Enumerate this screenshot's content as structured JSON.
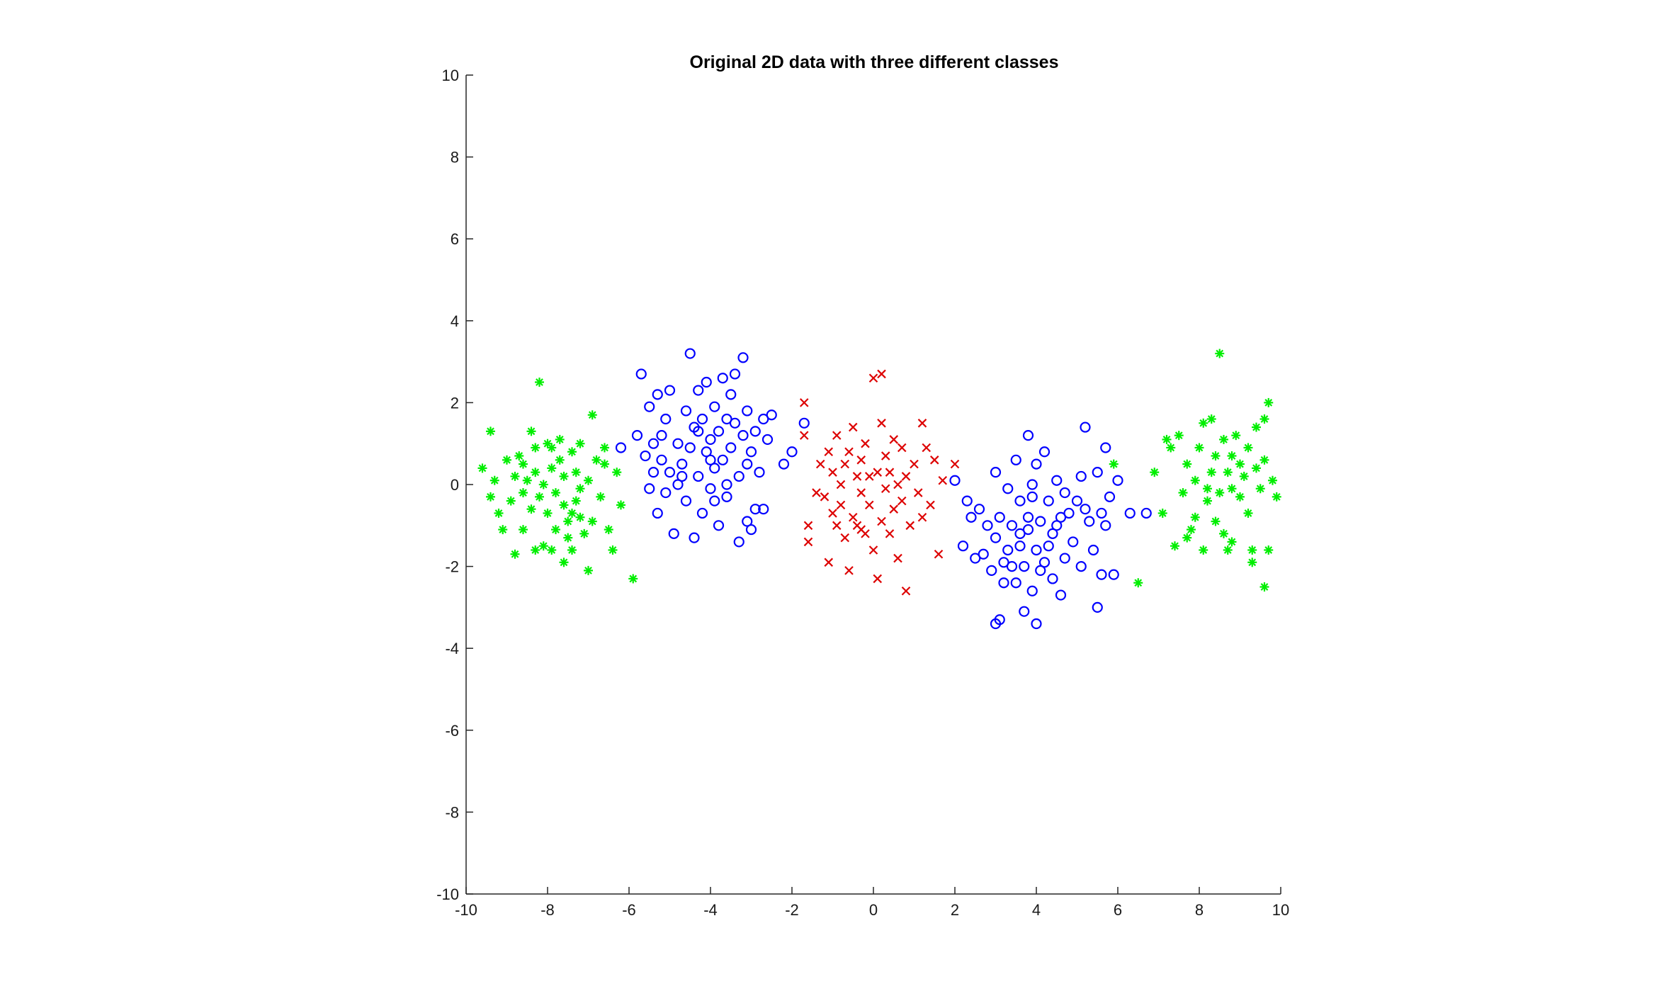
{
  "chart_data": {
    "type": "scatter",
    "title": "Original 2D data with three different classes",
    "xlabel": "",
    "ylabel": "",
    "xlim": [
      -10,
      10
    ],
    "ylim": [
      -10,
      10
    ],
    "xticks": [
      -10,
      -8,
      -6,
      -4,
      -2,
      0,
      2,
      4,
      6,
      8,
      10
    ],
    "yticks": [
      -10,
      -8,
      -6,
      -4,
      -2,
      0,
      2,
      4,
      6,
      8,
      10
    ],
    "grid": false,
    "legend": false,
    "series": [
      {
        "marker": "asterisk",
        "color": "#00ee00",
        "points": [
          [
            -9.6,
            0.4
          ],
          [
            -9.4,
            1.3
          ],
          [
            -9.4,
            -0.3
          ],
          [
            -9.3,
            0.1
          ],
          [
            -9.2,
            -0.7
          ],
          [
            -9.0,
            0.6
          ],
          [
            -8.9,
            -0.4
          ],
          [
            -8.8,
            0.2
          ],
          [
            -8.8,
            -1.7
          ],
          [
            -8.7,
            0.7
          ],
          [
            -8.6,
            -0.2
          ],
          [
            -8.6,
            -1.1
          ],
          [
            -8.5,
            0.1
          ],
          [
            -8.4,
            1.3
          ],
          [
            -8.4,
            -0.6
          ],
          [
            -8.3,
            -1.6
          ],
          [
            -8.3,
            0.9
          ],
          [
            -8.2,
            2.5
          ],
          [
            -8.2,
            -0.3
          ],
          [
            -8.1,
            0.0
          ],
          [
            -8.0,
            -0.7
          ],
          [
            -8.0,
            1.0
          ],
          [
            -7.9,
            -1.6
          ],
          [
            -7.9,
            0.4
          ],
          [
            -7.8,
            -0.2
          ],
          [
            -7.8,
            -1.1
          ],
          [
            -7.7,
            0.6
          ],
          [
            -7.7,
            1.1
          ],
          [
            -7.6,
            -0.5
          ],
          [
            -7.6,
            0.2
          ],
          [
            -7.5,
            -1.3
          ],
          [
            -7.5,
            -0.9
          ],
          [
            -7.4,
            0.8
          ],
          [
            -7.4,
            -1.6
          ],
          [
            -7.3,
            -0.4
          ],
          [
            -7.3,
            0.3
          ],
          [
            -7.2,
            -0.8
          ],
          [
            -7.2,
            1.0
          ],
          [
            -7.1,
            -1.2
          ],
          [
            -7.0,
            -2.1
          ],
          [
            -7.0,
            0.1
          ],
          [
            -6.9,
            1.7
          ],
          [
            -6.9,
            -0.9
          ],
          [
            -6.8,
            0.6
          ],
          [
            -6.7,
            -0.3
          ],
          [
            -6.6,
            0.9
          ],
          [
            -6.5,
            -1.1
          ],
          [
            -6.4,
            -1.6
          ],
          [
            -6.3,
            0.3
          ],
          [
            -6.2,
            -0.5
          ],
          [
            -5.9,
            -2.3
          ],
          [
            -8.6,
            0.5
          ],
          [
            -7.9,
            0.9
          ],
          [
            -7.6,
            -1.9
          ],
          [
            -8.1,
            -1.5
          ],
          [
            -7.2,
            -0.1
          ],
          [
            -6.6,
            0.5
          ],
          [
            -9.1,
            -1.1
          ],
          [
            -8.3,
            0.3
          ],
          [
            -7.4,
            -0.7
          ],
          [
            8.5,
            3.2
          ],
          [
            9.7,
            2.0
          ],
          [
            9.6,
            1.6
          ],
          [
            9.4,
            1.4
          ],
          [
            9.2,
            0.9
          ],
          [
            9.0,
            0.5
          ],
          [
            8.9,
            1.2
          ],
          [
            8.8,
            0.7
          ],
          [
            8.7,
            0.3
          ],
          [
            8.6,
            1.1
          ],
          [
            8.5,
            -0.2
          ],
          [
            8.4,
            0.7
          ],
          [
            8.3,
            1.6
          ],
          [
            8.3,
            0.3
          ],
          [
            8.2,
            -0.4
          ],
          [
            8.1,
            -1.6
          ],
          [
            8.0,
            0.9
          ],
          [
            7.9,
            -0.8
          ],
          [
            7.8,
            -1.1
          ],
          [
            7.7,
            0.5
          ],
          [
            7.6,
            -0.2
          ],
          [
            7.5,
            1.2
          ],
          [
            7.4,
            -1.5
          ],
          [
            7.3,
            0.9
          ],
          [
            7.2,
            1.1
          ],
          [
            7.1,
            -0.7
          ],
          [
            6.9,
            0.3
          ],
          [
            6.5,
            -2.4
          ],
          [
            5.9,
            0.5
          ],
          [
            8.8,
            -1.4
          ],
          [
            9.0,
            -0.3
          ],
          [
            9.2,
            -0.7
          ],
          [
            9.3,
            -1.6
          ],
          [
            9.5,
            -0.1
          ],
          [
            9.6,
            -2.5
          ],
          [
            9.7,
            -1.6
          ],
          [
            9.8,
            0.1
          ],
          [
            9.9,
            -0.3
          ],
          [
            8.7,
            -1.6
          ],
          [
            8.6,
            -1.2
          ],
          [
            9.4,
            0.4
          ],
          [
            9.1,
            0.2
          ],
          [
            8.2,
            -0.1
          ],
          [
            8.4,
            -0.9
          ],
          [
            7.9,
            0.1
          ],
          [
            9.3,
            -1.9
          ],
          [
            8.8,
            -0.1
          ],
          [
            9.6,
            0.6
          ],
          [
            8.1,
            1.5
          ],
          [
            7.7,
            -1.3
          ]
        ]
      },
      {
        "marker": "circle",
        "color": "#0000ff",
        "points": [
          [
            -6.2,
            0.9
          ],
          [
            -5.8,
            1.2
          ],
          [
            -5.7,
            2.7
          ],
          [
            -5.6,
            0.7
          ],
          [
            -5.5,
            1.9
          ],
          [
            -5.5,
            -0.1
          ],
          [
            -5.4,
            1.0
          ],
          [
            -5.3,
            2.2
          ],
          [
            -5.3,
            -0.7
          ],
          [
            -5.2,
            0.6
          ],
          [
            -5.1,
            1.6
          ],
          [
            -5.1,
            -0.2
          ],
          [
            -5.0,
            2.3
          ],
          [
            -5.0,
            0.3
          ],
          [
            -4.9,
            -1.2
          ],
          [
            -4.8,
            1.0
          ],
          [
            -4.7,
            0.5
          ],
          [
            -4.6,
            1.8
          ],
          [
            -4.6,
            -0.4
          ],
          [
            -4.5,
            3.2
          ],
          [
            -4.5,
            0.9
          ],
          [
            -4.4,
            1.4
          ],
          [
            -4.4,
            -1.3
          ],
          [
            -4.3,
            0.2
          ],
          [
            -4.3,
            2.3
          ],
          [
            -4.2,
            1.6
          ],
          [
            -4.2,
            -0.7
          ],
          [
            -4.1,
            0.8
          ],
          [
            -4.1,
            2.5
          ],
          [
            -4.0,
            1.1
          ],
          [
            -4.0,
            -0.1
          ],
          [
            -3.9,
            1.9
          ],
          [
            -3.9,
            0.4
          ],
          [
            -3.8,
            -1.0
          ],
          [
            -3.8,
            1.3
          ],
          [
            -3.7,
            2.6
          ],
          [
            -3.7,
            0.6
          ],
          [
            -3.6,
            1.6
          ],
          [
            -3.6,
            -0.3
          ],
          [
            -3.5,
            2.2
          ],
          [
            -3.5,
            0.9
          ],
          [
            -3.4,
            1.5
          ],
          [
            -3.4,
            2.7
          ],
          [
            -3.3,
            0.2
          ],
          [
            -3.3,
            -1.4
          ],
          [
            -3.2,
            1.2
          ],
          [
            -3.2,
            3.1
          ],
          [
            -3.1,
            0.5
          ],
          [
            -3.1,
            1.8
          ],
          [
            -3.0,
            -1.1
          ],
          [
            -3.0,
            0.8
          ],
          [
            -2.9,
            1.3
          ],
          [
            -2.9,
            -0.6
          ],
          [
            -2.8,
            0.3
          ],
          [
            -2.7,
            1.6
          ],
          [
            -2.7,
            -0.6
          ],
          [
            -2.6,
            1.1
          ],
          [
            -2.5,
            1.7
          ],
          [
            -2.2,
            0.5
          ],
          [
            -2.0,
            0.8
          ],
          [
            -1.7,
            1.5
          ],
          [
            -5.2,
            1.2
          ],
          [
            -4.8,
            0.0
          ],
          [
            -4.0,
            0.6
          ],
          [
            -3.6,
            0.0
          ],
          [
            -4.3,
            1.3
          ],
          [
            -3.9,
            -0.4
          ],
          [
            -4.7,
            0.2
          ],
          [
            -5.4,
            0.3
          ],
          [
            -3.1,
            -0.9
          ],
          [
            2.0,
            0.1
          ],
          [
            2.2,
            -1.5
          ],
          [
            2.3,
            -0.4
          ],
          [
            2.4,
            -0.8
          ],
          [
            2.5,
            -1.8
          ],
          [
            2.6,
            -0.6
          ],
          [
            2.7,
            -1.7
          ],
          [
            2.8,
            -1.0
          ],
          [
            2.9,
            -2.1
          ],
          [
            3.0,
            0.3
          ],
          [
            3.0,
            -1.3
          ],
          [
            3.1,
            -3.3
          ],
          [
            3.1,
            -0.8
          ],
          [
            3.2,
            -2.4
          ],
          [
            3.3,
            -1.6
          ],
          [
            3.3,
            -0.1
          ],
          [
            3.4,
            -2.0
          ],
          [
            3.4,
            -1.0
          ],
          [
            3.5,
            0.6
          ],
          [
            3.5,
            -2.4
          ],
          [
            3.6,
            -1.5
          ],
          [
            3.6,
            -0.4
          ],
          [
            3.7,
            -3.1
          ],
          [
            3.7,
            -2.0
          ],
          [
            3.8,
            1.2
          ],
          [
            3.8,
            -1.1
          ],
          [
            3.9,
            -0.3
          ],
          [
            3.9,
            -2.6
          ],
          [
            4.0,
            -1.6
          ],
          [
            4.0,
            0.5
          ],
          [
            4.0,
            -3.4
          ],
          [
            4.1,
            -0.9
          ],
          [
            4.1,
            -2.1
          ],
          [
            4.2,
            0.8
          ],
          [
            4.3,
            -1.5
          ],
          [
            4.3,
            -0.4
          ],
          [
            4.4,
            -2.3
          ],
          [
            4.5,
            0.1
          ],
          [
            4.5,
            -1.0
          ],
          [
            4.6,
            -2.7
          ],
          [
            4.7,
            -0.2
          ],
          [
            4.7,
            -1.8
          ],
          [
            4.8,
            -0.7
          ],
          [
            4.9,
            -1.4
          ],
          [
            5.0,
            -0.4
          ],
          [
            5.1,
            0.2
          ],
          [
            5.1,
            -2.0
          ],
          [
            5.2,
            1.4
          ],
          [
            5.3,
            -0.9
          ],
          [
            5.4,
            -1.6
          ],
          [
            5.5,
            0.3
          ],
          [
            5.6,
            -0.7
          ],
          [
            5.6,
            -2.2
          ],
          [
            5.7,
            -1.0
          ],
          [
            5.8,
            -0.3
          ],
          [
            5.9,
            -2.2
          ],
          [
            6.0,
            0.1
          ],
          [
            6.3,
            -0.7
          ],
          [
            6.7,
            -0.7
          ],
          [
            5.7,
            0.9
          ],
          [
            3.2,
            -1.9
          ],
          [
            3.6,
            -1.2
          ],
          [
            4.2,
            -1.9
          ],
          [
            3.8,
            -0.8
          ],
          [
            4.6,
            -0.8
          ],
          [
            5.5,
            -3.0
          ],
          [
            3.0,
            -3.4
          ],
          [
            4.4,
            -1.2
          ],
          [
            5.2,
            -0.6
          ],
          [
            3.9,
            0.0
          ]
        ]
      },
      {
        "marker": "x",
        "color": "#dd0000",
        "points": [
          [
            -1.7,
            2.0
          ],
          [
            -1.7,
            1.2
          ],
          [
            -1.6,
            -1.0
          ],
          [
            -1.6,
            -1.4
          ],
          [
            -1.4,
            -0.2
          ],
          [
            -1.3,
            0.5
          ],
          [
            -1.2,
            -0.3
          ],
          [
            -1.1,
            -1.9
          ],
          [
            -1.1,
            0.8
          ],
          [
            -1.0,
            -0.7
          ],
          [
            -1.0,
            0.3
          ],
          [
            -0.9,
            -1.0
          ],
          [
            -0.9,
            1.2
          ],
          [
            -0.8,
            0.0
          ],
          [
            -0.8,
            -0.5
          ],
          [
            -0.7,
            0.5
          ],
          [
            -0.7,
            -1.3
          ],
          [
            -0.6,
            -2.1
          ],
          [
            -0.6,
            0.8
          ],
          [
            -0.5,
            -0.8
          ],
          [
            -0.5,
            1.4
          ],
          [
            -0.4,
            0.2
          ],
          [
            -0.4,
            -1.0
          ],
          [
            -0.3,
            -0.2
          ],
          [
            -0.3,
            0.6
          ],
          [
            -0.2,
            -1.2
          ],
          [
            -0.2,
            1.0
          ],
          [
            -0.1,
            -0.5
          ],
          [
            -0.1,
            0.2
          ],
          [
            0.0,
            2.6
          ],
          [
            0.0,
            -1.6
          ],
          [
            0.1,
            0.3
          ],
          [
            0.1,
            -2.3
          ],
          [
            0.2,
            2.7
          ],
          [
            0.2,
            -0.9
          ],
          [
            0.2,
            1.5
          ],
          [
            0.3,
            -0.1
          ],
          [
            0.3,
            0.7
          ],
          [
            0.4,
            -1.2
          ],
          [
            0.4,
            0.3
          ],
          [
            0.5,
            1.1
          ],
          [
            0.5,
            -0.6
          ],
          [
            0.6,
            0.0
          ],
          [
            0.6,
            -1.8
          ],
          [
            0.7,
            0.9
          ],
          [
            0.7,
            -0.4
          ],
          [
            0.8,
            0.2
          ],
          [
            0.8,
            -2.6
          ],
          [
            0.9,
            -1.0
          ],
          [
            1.0,
            0.5
          ],
          [
            1.1,
            -0.2
          ],
          [
            1.2,
            -0.8
          ],
          [
            1.2,
            1.5
          ],
          [
            1.3,
            0.9
          ],
          [
            1.4,
            -0.5
          ],
          [
            1.5,
            0.6
          ],
          [
            1.6,
            -1.7
          ],
          [
            1.7,
            0.1
          ],
          [
            2.0,
            0.5
          ],
          [
            -0.3,
            -1.1
          ]
        ]
      }
    ]
  }
}
